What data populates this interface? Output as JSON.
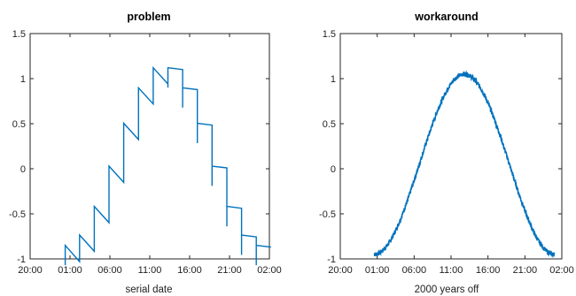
{
  "figure": {
    "background": "#ffffff"
  },
  "chart_data": [
    {
      "type": "line",
      "title": "problem",
      "xlabel": "serial date",
      "ylabel": "",
      "ylim": [
        -1,
        1.5
      ],
      "yticks": [
        -1,
        -0.5,
        0,
        0.5,
        1,
        1.5
      ],
      "xtick_labels": [
        "20:00",
        "01:00",
        "06:00",
        "11:00",
        "16:00",
        "21:00",
        "02:00"
      ],
      "xlim_hours": [
        "20:00",
        "02:00 (+30 h)"
      ],
      "grid": false,
      "series": [
        {
          "color": "#0072bd",
          "style": "staircase (precision-loss quantized)",
          "x": [
            "01:55",
            "01:00",
            "03:45",
            "05:30",
            "07:20",
            "09:10",
            "11:15",
            "14:45",
            "16:40",
            "18:30",
            "20:20",
            "22:15",
            "00:05",
            "01:55",
            "03:45",
            "05:30",
            "07:20",
            "09:10",
            "11:15",
            "16:40",
            "18:30",
            "20:20",
            "22:15",
            "00:05",
            "01:55",
            "03:45",
            "05:30",
            "07:20",
            "09:10",
            "11:15",
            "14:45",
            "16:40",
            "18:30",
            "20:20",
            "22:15",
            "00:05"
          ],
          "y": [
            -0.95,
            -0.8,
            -0.5,
            -0.25,
            0.25,
            0.65,
            0.9,
            1.05,
            0.7,
            0.3,
            -0.1,
            -0.5,
            -0.9,
            -0.95,
            -0.8,
            -0.5,
            -0.25,
            0.25,
            0.65,
            0.7,
            0.3,
            -0.1,
            -0.5,
            -0.9,
            -0.95,
            -0.8,
            -0.5,
            -0.25,
            0.25,
            0.65,
            1.05,
            0.7,
            0.3,
            -0.1,
            -0.5,
            -0.9
          ]
        }
      ]
    },
    {
      "type": "line",
      "title": "workaround",
      "xlabel": "2000 years off",
      "ylabel": "",
      "ylim": [
        -1,
        1.5
      ],
      "yticks": [
        -1,
        -0.5,
        0,
        0.5,
        1,
        1.5
      ],
      "xtick_labels": [
        "20:00",
        "01:00",
        "06:00",
        "11:00",
        "16:00",
        "21:00",
        "02:00"
      ],
      "grid": false,
      "series": [
        {
          "color": "#0072bd",
          "style": "smooth noisy sine",
          "x_start": "00:35",
          "x_end": "01:00 (+1 day)",
          "y_peak": 1.05,
          "y_min": -0.95
        }
      ]
    }
  ]
}
